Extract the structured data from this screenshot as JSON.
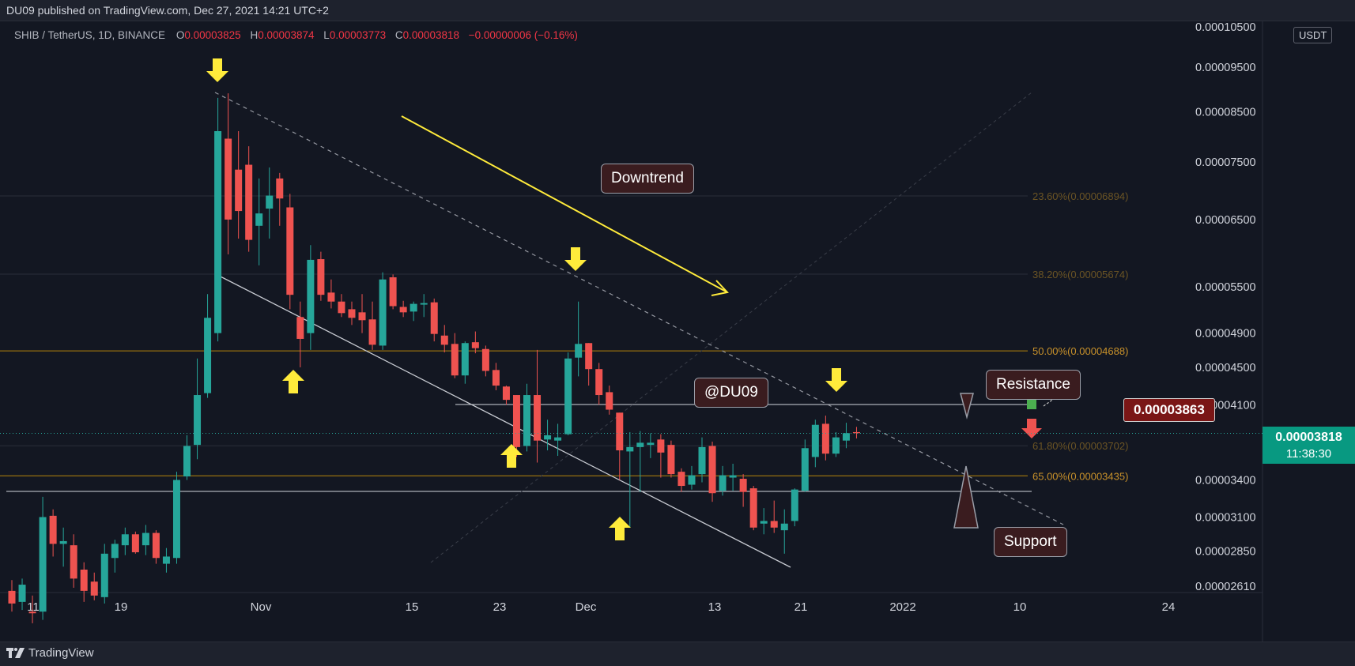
{
  "header": {
    "publisher_text": "DU09 published on TradingView.com, Dec 27, 2021 14:21 UTC+2"
  },
  "symbol": {
    "name": "SHIB / TetherUS, 1D, BINANCE",
    "open_label": "O",
    "open": "0.00003825",
    "high_label": "H",
    "high": "0.00003874",
    "low_label": "L",
    "low": "0.00003773",
    "close_label": "C",
    "close": "0.00003818",
    "change": "−0.00000006 (−0.16%)"
  },
  "unit_badge": "USDT",
  "annotations": {
    "downtrend": "Downtrend",
    "watermark": "@DU09",
    "resistance": "Resistance",
    "support": "Support",
    "resistance_price": "0.00003863"
  },
  "last_price": {
    "value": "0.00003818",
    "countdown": "11:38:30"
  },
  "footer": {
    "brand": "TradingView"
  },
  "colors": {
    "background": "#131722",
    "up": "#26a69a",
    "down": "#ef5350",
    "fib": "#b8860b",
    "arrow": "#ffeb3b",
    "trendline": "#ffeb3b"
  },
  "chart_data": {
    "type": "candlestick",
    "scale": "log",
    "y_tick_labels": [
      "0.00010500",
      "0.00009500",
      "0.00008500",
      "0.00007500",
      "0.00006500",
      "0.00005500",
      "0.00004900",
      "0.00004500",
      "0.00004100",
      "0.00003400",
      "0.00003100",
      "0.00002850",
      "0.00002610"
    ],
    "x_tick_labels": [
      "11",
      "19",
      "Nov",
      "15",
      "23",
      "Dec",
      "13",
      "21",
      "2022",
      "10",
      "24"
    ],
    "fib_levels": [
      {
        "label": "23.60%(0.00006894)",
        "value": 6.894e-05
      },
      {
        "label": "38.20%(0.00005674)",
        "value": 5.674e-05
      },
      {
        "label": "50.00%(0.00004688)",
        "value": 4.688e-05
      },
      {
        "label": "61.80%(0.00003702)",
        "value": 3.702e-05
      },
      {
        "label": "65.00%(0.00003435)",
        "value": 3.435e-05
      }
    ],
    "candles": [
      [
        2.58e-05,
        2.65e-05,
        2.45e-05,
        2.5e-05
      ],
      [
        2.51e-05,
        2.66e-05,
        2.46e-05,
        2.62e-05
      ],
      [
        2.45e-05,
        2.55e-05,
        2.38e-05,
        2.44e-05
      ],
      [
        2.45e-05,
        3.26e-05,
        2.4e-05,
        3.1e-05
      ],
      [
        3.11e-05,
        3.16e-05,
        2.81e-05,
        2.9e-05
      ],
      [
        2.9e-05,
        3.02e-05,
        2.74e-05,
        2.92e-05
      ],
      [
        2.89e-05,
        2.97e-05,
        2.6e-05,
        2.66e-05
      ],
      [
        2.72e-05,
        2.77e-05,
        2.51e-05,
        2.58e-05
      ],
      [
        2.64e-05,
        2.7e-05,
        2.52e-05,
        2.55e-05
      ],
      [
        2.54e-05,
        2.9e-05,
        2.5e-05,
        2.83e-05
      ],
      [
        2.8e-05,
        2.93e-05,
        2.7e-05,
        2.9e-05
      ],
      [
        2.89e-05,
        3.02e-05,
        2.82e-05,
        2.97e-05
      ],
      [
        2.97e-05,
        2.99e-05,
        2.83e-05,
        2.84e-05
      ],
      [
        2.89e-05,
        3.04e-05,
        2.82e-05,
        2.98e-05
      ],
      [
        2.98e-05,
        3e-05,
        2.76e-05,
        2.8e-05
      ],
      [
        2.76e-05,
        2.87e-05,
        2.7e-05,
        2.81e-05
      ],
      [
        2.8e-05,
        3.47e-05,
        2.76e-05,
        3.4e-05
      ],
      [
        3.43e-05,
        3.8e-05,
        3.4e-05,
        3.7e-05
      ],
      [
        3.71e-05,
        4.6e-05,
        3.58e-05,
        4.2e-05
      ],
      [
        4.22e-05,
        5.4e-05,
        4.17e-05,
        5.09e-05
      ],
      [
        4.9e-05,
        8.8e-05,
        4.8e-05,
        8.1e-05
      ],
      [
        7.95e-05,
        8.9e-05,
        5.96e-05,
        6.5e-05
      ],
      [
        7.36e-05,
        8.1e-05,
        6.2e-05,
        6.64e-05
      ],
      [
        7.45e-05,
        7.8e-05,
        6e-05,
        6.18e-05
      ],
      [
        6.4e-05,
        7.2e-05,
        5.8e-05,
        6.6e-05
      ],
      [
        6.68e-05,
        7.4e-05,
        6.2e-05,
        6.9e-05
      ],
      [
        7.2e-05,
        7.3e-05,
        6.4e-05,
        6.85e-05
      ],
      [
        6.7e-05,
        6.93e-05,
        5.2e-05,
        5.39e-05
      ],
      [
        5.1e-05,
        5.3e-05,
        4.5e-05,
        4.83e-05
      ],
      [
        4.9e-05,
        6.1e-05,
        4.7e-05,
        5.88e-05
      ],
      [
        5.89e-05,
        6e-05,
        5.31e-05,
        5.39e-05
      ],
      [
        5.42e-05,
        5.6e-05,
        5.21e-05,
        5.3e-05
      ],
      [
        5.3e-05,
        5.4e-05,
        5.1e-05,
        5.15e-05
      ],
      [
        5.2e-05,
        5.3e-05,
        5e-05,
        5.09e-05
      ],
      [
        5.16e-05,
        5.4e-05,
        4.9e-05,
        5.06e-05
      ],
      [
        5.07e-05,
        5.3e-05,
        4.7e-05,
        4.76e-05
      ],
      [
        4.75e-05,
        5.7e-05,
        4.7e-05,
        5.6e-05
      ],
      [
        5.63e-05,
        5.67e-05,
        5.2e-05,
        5.24e-05
      ],
      [
        5.23e-05,
        5.31e-05,
        5.1e-05,
        5.16e-05
      ],
      [
        5.17e-05,
        5.3e-05,
        5.05e-05,
        5.27e-05
      ],
      [
        5.26e-05,
        5.4e-05,
        5.1e-05,
        5.28e-05
      ],
      [
        5.29e-05,
        5.34e-05,
        4.8e-05,
        4.89e-05
      ],
      [
        4.87e-05,
        5e-05,
        4.67e-05,
        4.76e-05
      ],
      [
        4.77e-05,
        4.9e-05,
        4.38e-05,
        4.41e-05
      ],
      [
        4.41e-05,
        4.8e-05,
        4.32e-05,
        4.78e-05
      ],
      [
        4.79e-05,
        4.92e-05,
        4.66e-05,
        4.72e-05
      ],
      [
        4.71e-05,
        4.75e-05,
        4.4e-05,
        4.46e-05
      ],
      [
        4.47e-05,
        4.55e-05,
        4.25e-05,
        4.3e-05
      ],
      [
        4.29e-05,
        4.3e-05,
        4.1e-05,
        4.15e-05
      ],
      [
        4.2e-05,
        4.2e-05,
        3.6e-05,
        3.69e-05
      ],
      [
        3.7e-05,
        4.32e-05,
        3.65e-05,
        4.2e-05
      ],
      [
        4.2e-05,
        4.7e-05,
        3.55e-05,
        3.75e-05
      ],
      [
        3.76e-05,
        3.95e-05,
        3.66e-05,
        3.8e-05
      ],
      [
        3.75e-05,
        3.91e-05,
        3.61e-05,
        3.78e-05
      ],
      [
        3.81e-05,
        4.67e-05,
        3.8e-05,
        4.6e-05
      ],
      [
        4.61e-05,
        5.3e-05,
        4.4e-05,
        4.77e-05
      ],
      [
        4.78e-05,
        4.78e-05,
        4.3e-05,
        4.48e-05
      ],
      [
        4.48e-05,
        4.55e-05,
        4.1e-05,
        4.2e-05
      ],
      [
        4.23e-05,
        4.3e-05,
        4e-05,
        4.05e-05
      ],
      [
        4.02e-05,
        4.02e-05,
        3.4e-05,
        3.66e-05
      ],
      [
        3.65e-05,
        3.83e-05,
        3.02e-05,
        3.69e-05
      ],
      [
        3.69e-05,
        3.84e-05,
        3.3e-05,
        3.73e-05
      ],
      [
        3.71e-05,
        3.82e-05,
        3.59e-05,
        3.73e-05
      ],
      [
        3.76e-05,
        3.81e-05,
        3.42e-05,
        3.64e-05
      ],
      [
        3.71e-05,
        3.75e-05,
        3.42e-05,
        3.45e-05
      ],
      [
        3.47e-05,
        3.5e-05,
        3.3e-05,
        3.35e-05
      ],
      [
        3.36e-05,
        3.52e-05,
        3.32e-05,
        3.44e-05
      ],
      [
        3.45e-05,
        3.78e-05,
        3.38e-05,
        3.69e-05
      ],
      [
        3.7e-05,
        3.74e-05,
        3.22e-05,
        3.29e-05
      ],
      [
        3.31e-05,
        3.52e-05,
        3.27e-05,
        3.44e-05
      ],
      [
        3.42e-05,
        3.54e-05,
        3.31e-05,
        3.44e-05
      ],
      [
        3.41e-05,
        3.45e-05,
        3.18e-05,
        3.3e-05
      ],
      [
        3.33e-05,
        3.35e-05,
        3e-05,
        3.02e-05
      ],
      [
        3.05e-05,
        3.17e-05,
        2.97e-05,
        3.07e-05
      ],
      [
        3.07e-05,
        3.23e-05,
        2.98e-05,
        3.02e-05
      ],
      [
        3e-05,
        3.16e-05,
        2.83e-05,
        3.05e-05
      ],
      [
        3.07e-05,
        3.33e-05,
        3.03e-05,
        3.32e-05
      ],
      [
        3.31e-05,
        3.76e-05,
        3.3e-05,
        3.68e-05
      ],
      [
        3.6e-05,
        3.95e-05,
        3.51e-05,
        3.9e-05
      ],
      [
        3.91e-05,
        3.99e-05,
        3.57e-05,
        3.63e-05
      ],
      [
        3.63e-05,
        3.83e-05,
        3.6e-05,
        3.78e-05
      ],
      [
        3.75e-05,
        3.92e-05,
        3.68e-05,
        3.82e-05
      ],
      [
        3.83e-05,
        3.88e-05,
        3.77e-05,
        3.82e-05
      ]
    ]
  }
}
